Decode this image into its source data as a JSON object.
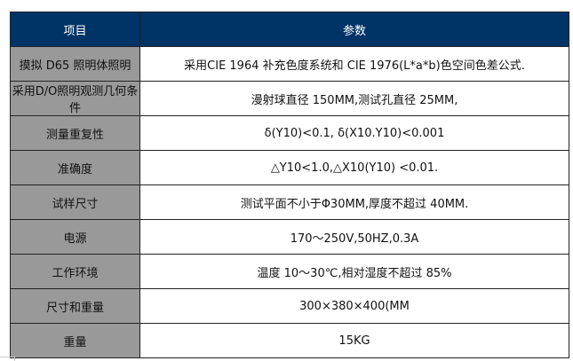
{
  "header": {
    "item": "项目",
    "param": "参数"
  },
  "rows": [
    {
      "item": "摸拟 D65 照明体照明",
      "param": "采用CIE 1964 补充色度系统和 CIE 1976(L*a*b)色空间色差公式."
    },
    {
      "item": "采用D/O照明观测几何条件",
      "param": "漫射球直径 150MM,测试孔直径 25MM,"
    },
    {
      "item": "测量重复性",
      "param": "δ(Y10)<0.1, δ(X10.Y10)<0.001"
    },
    {
      "item": "准确度",
      "param": "△Y10<1.0,△X10(Y10) <0.01."
    },
    {
      "item": "试样尺寸",
      "param": "测试平面不小于Φ30MM,厚度不超过 40MM."
    },
    {
      "item": "电源",
      "param": "170～250V,50HZ,0.3A"
    },
    {
      "item": "工作环境",
      "param": "温度 10～30℃,相对湿度不超过 85%"
    },
    {
      "item": "尺寸和重量",
      "param": "300×380×400(MM"
    },
    {
      "item": "重量",
      "param": "15KG"
    }
  ],
  "colors": {
    "header": "#003366",
    "label_cell": "#999999"
  }
}
